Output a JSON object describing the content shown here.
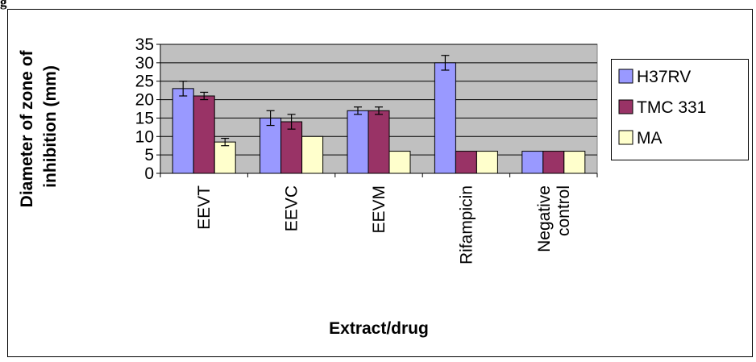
{
  "corner_fragment": "g",
  "chart_data": {
    "type": "bar",
    "title": "",
    "xlabel": "Extract/drug",
    "ylabel_lines": [
      "Diameter of zone of",
      "inhibition (mm)"
    ],
    "categories": [
      {
        "name": "EEVT",
        "lines": [
          "EEVT"
        ]
      },
      {
        "name": "EEVC",
        "lines": [
          "EEVC"
        ]
      },
      {
        "name": "EEVM",
        "lines": [
          "EEVM"
        ]
      },
      {
        "name": "Rifampicin",
        "lines": [
          "Rifampicin"
        ]
      },
      {
        "name": "Negative control",
        "lines": [
          "Negative",
          "control"
        ]
      }
    ],
    "ylim": [
      0,
      35
    ],
    "yticks": [
      0,
      5,
      10,
      15,
      20,
      25,
      30,
      35
    ],
    "grid": true,
    "legend_position": "right",
    "series": [
      {
        "name": "H37RV",
        "color": "#9999ff",
        "values": [
          23,
          15,
          17,
          30,
          6
        ],
        "errors": [
          2,
          2,
          1,
          2,
          0
        ]
      },
      {
        "name": "TMC 331",
        "color": "#993366",
        "values": [
          21,
          14,
          17,
          6,
          6
        ],
        "errors": [
          1,
          2,
          1,
          0,
          0
        ]
      },
      {
        "name": "MA",
        "color": "#ffffcc",
        "values": [
          8.5,
          10,
          6,
          6,
          6
        ],
        "errors": [
          1,
          0,
          0,
          0,
          0
        ]
      }
    ],
    "colors": {
      "plot_background": "#c0c0c0",
      "frame": "#000000"
    }
  }
}
